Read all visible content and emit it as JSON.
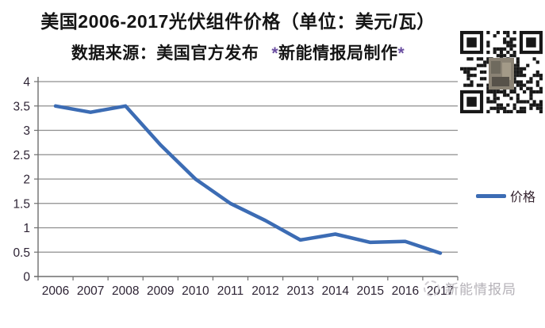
{
  "header": {
    "title": "美国2006-2017光伏组件价格（单位：美元/瓦）",
    "source": "数据来源：美国官方发布",
    "credit_star_left": "*",
    "credit_text": "新能情报局制作",
    "credit_star_right": "*"
  },
  "chart_data": {
    "type": "line",
    "categories": [
      "2006",
      "2007",
      "2008",
      "2009",
      "2010",
      "2011",
      "2012",
      "2013",
      "2014",
      "2015",
      "2016",
      "2017"
    ],
    "series": [
      {
        "name": "价格",
        "values": [
          3.5,
          3.37,
          3.5,
          2.7,
          2.0,
          1.5,
          1.15,
          0.75,
          0.87,
          0.7,
          0.72,
          0.48
        ],
        "color": "#3c6cb4"
      }
    ],
    "title": "美国2006-2017光伏组件价格（单位：美元/瓦）",
    "xlabel": "",
    "ylabel": "",
    "ylim": [
      0,
      4
    ],
    "ytick_step": 0.5,
    "grid": true,
    "legend_position": "right"
  },
  "legend": {
    "label": "价格"
  },
  "watermark": {
    "text": "新能情报局"
  },
  "icons": {
    "qr": "qr-code-icon",
    "watermark_logo": "watermark-logo-icon"
  },
  "colors": {
    "line": "#3c6cb4",
    "grid": "#8e8e8e",
    "axis": "#6f6f6f",
    "tick_label": "#2e2435",
    "title": "#151515",
    "star_accent": "#6b4fa1",
    "watermark": "#b5b2b8",
    "qr_dark": "#181818"
  }
}
